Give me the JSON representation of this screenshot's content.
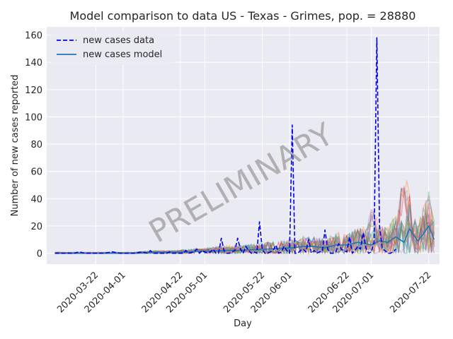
{
  "chart_data": {
    "type": "line",
    "title": "Model comparison to data US - Texas - Grimes, pop. = 28880",
    "xlabel": "Day",
    "ylabel": "Number of new cases reported",
    "watermark": "PRELIMINARY",
    "xlim": [
      "2020-03-04",
      "2020-07-26"
    ],
    "ylim": [
      -8,
      166
    ],
    "yticks": [
      0,
      20,
      40,
      60,
      80,
      100,
      120,
      140,
      160
    ],
    "xticks": [
      "2020-03-22",
      "2020-04-01",
      "2020-04-22",
      "2020-05-01",
      "2020-05-22",
      "2020-06-01",
      "2020-06-22",
      "2020-07-01",
      "2020-07-22"
    ],
    "grid": true,
    "legend_position": "top-left",
    "colors": {
      "background": "#eaeaf2",
      "grid": "#ffffff",
      "data": "#0000ee",
      "model": "#1f77b4",
      "ensemble": [
        "#d62728",
        "#e377c2",
        "#9467bd",
        "#2ca02c",
        "#ff7f0e",
        "#bcbd22",
        "#8c564b",
        "#17becf",
        "#7f7f7f",
        "#1f77b4"
      ]
    },
    "series": [
      {
        "name": "new cases data",
        "style": "dashed",
        "x": [
          "2020-03-07",
          "2020-03-12",
          "2020-03-14",
          "2020-03-16",
          "2020-03-18",
          "2020-03-22",
          "2020-03-25",
          "2020-03-28",
          "2020-03-31",
          "2020-04-02",
          "2020-04-05",
          "2020-04-08",
          "2020-04-10",
          "2020-04-11",
          "2020-04-12",
          "2020-04-15",
          "2020-04-17",
          "2020-04-18",
          "2020-04-19",
          "2020-04-21",
          "2020-04-23",
          "2020-04-24",
          "2020-04-25",
          "2020-04-27",
          "2020-04-28",
          "2020-04-29",
          "2020-04-30",
          "2020-05-01",
          "2020-05-02",
          "2020-05-03",
          "2020-05-04",
          "2020-05-05",
          "2020-05-06",
          "2020-05-07",
          "2020-05-08",
          "2020-05-09",
          "2020-05-10",
          "2020-05-11",
          "2020-05-12",
          "2020-05-13",
          "2020-05-14",
          "2020-05-15",
          "2020-05-16",
          "2020-05-17",
          "2020-05-18",
          "2020-05-19",
          "2020-05-20",
          "2020-05-21",
          "2020-05-22",
          "2020-05-23",
          "2020-05-24",
          "2020-05-25",
          "2020-05-26",
          "2020-05-27",
          "2020-05-28",
          "2020-05-29",
          "2020-05-30",
          "2020-05-31",
          "2020-06-01",
          "2020-06-02",
          "2020-06-03",
          "2020-06-04",
          "2020-06-05",
          "2020-06-06",
          "2020-06-07",
          "2020-06-08",
          "2020-06-09",
          "2020-06-10",
          "2020-06-11",
          "2020-06-12",
          "2020-06-13",
          "2020-06-14",
          "2020-06-15",
          "2020-06-16",
          "2020-06-17",
          "2020-06-18",
          "2020-06-19",
          "2020-06-20",
          "2020-06-21",
          "2020-06-22",
          "2020-06-23",
          "2020-06-24",
          "2020-06-25",
          "2020-06-26",
          "2020-06-27",
          "2020-06-28",
          "2020-06-29",
          "2020-06-30",
          "2020-07-01",
          "2020-07-02",
          "2020-07-03",
          "2020-07-04",
          "2020-07-05",
          "2020-07-06",
          "2020-07-07",
          "2020-07-08",
          "2020-07-09",
          "2020-07-10"
        ],
        "values": [
          0,
          0,
          0,
          1,
          0,
          0,
          0,
          1,
          0,
          0,
          0,
          1,
          0,
          2,
          0,
          0,
          0,
          1,
          0,
          0,
          0,
          2,
          0,
          1,
          3,
          0,
          2,
          1,
          0,
          1,
          3,
          0,
          0,
          11,
          2,
          0,
          0,
          1,
          2,
          11,
          3,
          0,
          5,
          2,
          0,
          1,
          0,
          23,
          3,
          0,
          0,
          1,
          2,
          6,
          0,
          1,
          5,
          2,
          0,
          94,
          0,
          0,
          2,
          3,
          1,
          10,
          0,
          2,
          0,
          1,
          1,
          17,
          3,
          0,
          0,
          1,
          7,
          3,
          2,
          1,
          12,
          0,
          2,
          5,
          3,
          15,
          4,
          0,
          1,
          8,
          158,
          20,
          3,
          2,
          0,
          0,
          1,
          3
        ]
      },
      {
        "name": "new cases model",
        "style": "solid",
        "x": [
          "2020-03-07",
          "2020-03-15",
          "2020-03-22",
          "2020-03-29",
          "2020-04-05",
          "2020-04-12",
          "2020-04-19",
          "2020-04-26",
          "2020-05-03",
          "2020-05-08",
          "2020-05-13",
          "2020-05-18",
          "2020-05-23",
          "2020-05-28",
          "2020-06-02",
          "2020-06-06",
          "2020-06-10",
          "2020-06-14",
          "2020-06-18",
          "2020-06-22",
          "2020-06-26",
          "2020-06-29",
          "2020-07-01",
          "2020-07-04",
          "2020-07-07",
          "2020-07-10",
          "2020-07-13",
          "2020-07-15",
          "2020-07-18",
          "2020-07-20",
          "2020-07-22",
          "2020-07-24"
        ],
        "values": [
          0,
          0,
          0,
          0,
          0,
          0.5,
          0.5,
          1,
          1.5,
          2,
          2,
          2.5,
          3,
          3.5,
          4,
          5,
          5,
          4,
          6,
          6,
          8,
          7,
          6,
          9,
          8,
          12,
          8,
          18,
          9,
          14,
          20,
          10
        ]
      }
    ]
  }
}
